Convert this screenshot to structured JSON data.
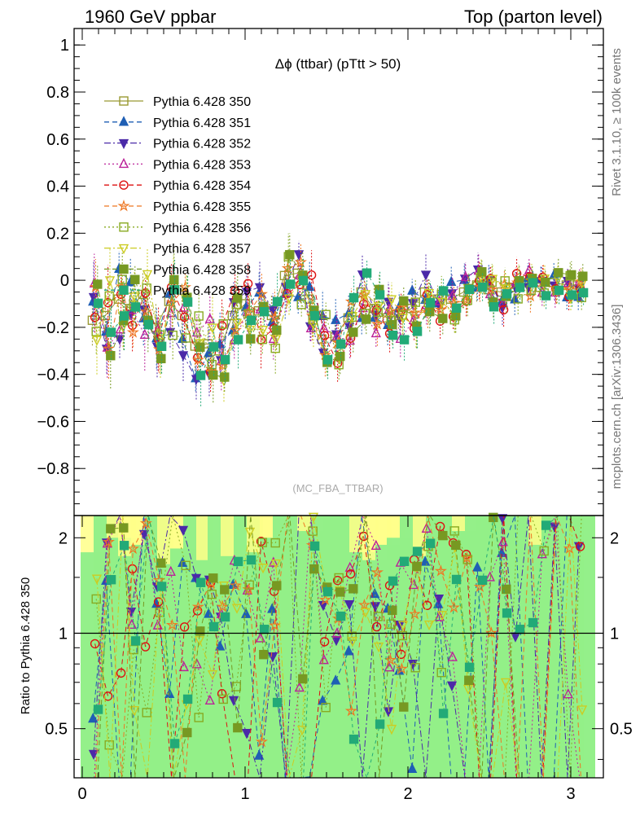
{
  "header": {
    "left": "1960 GeV ppbar",
    "right": "Top (parton level)"
  },
  "side_labels": {
    "upper": "Rivet 3.1.10, ≥ 100k events",
    "lower": "mcplots.cern.ch [arXiv:1306.3436]"
  },
  "chart_data": {
    "type": "line",
    "title": "Δϕ (ttbar) (pTtt > 50)",
    "watermark": "(MC_FBA_TTBAR)",
    "xlim": [
      -0.05,
      3.2
    ],
    "ylim": [
      -1.0,
      1.07
    ],
    "ratio_ylabel": "Ratio to Pythia 6.428 350",
    "ratio_ylim": [
      0.35,
      2.35
    ],
    "x_ticks": [
      "0",
      "1",
      "2",
      "3"
    ],
    "y_ticks": [
      "−0.8",
      "−0.6",
      "−0.4",
      "−0.2",
      "0",
      "0.2",
      "0.4",
      "0.6",
      "0.8",
      "1"
    ],
    "ratio_ticks": [
      "0.5",
      "1",
      "2"
    ],
    "legend_position": "top-left",
    "series": [
      {
        "name": "Pythia 6.428 350",
        "color": "#999933",
        "marker": "square-open",
        "dash": "none"
      },
      {
        "name": "Pythia 6.428 351",
        "color": "#1f5fb4",
        "marker": "triangle-up-filled",
        "dash": "6,4"
      },
      {
        "name": "Pythia 6.428 352",
        "color": "#4b2aa8",
        "marker": "triangle-down-filled",
        "dash": "8,3,2,3"
      },
      {
        "name": "Pythia 6.428 353",
        "color": "#bb2299",
        "marker": "triangle-up-open",
        "dash": "2,3"
      },
      {
        "name": "Pythia 6.428 354",
        "color": "#dd1111",
        "marker": "circle-open",
        "dash": "6,4"
      },
      {
        "name": "Pythia 6.428 355",
        "color": "#ee7722",
        "marker": "star-open",
        "dash": "6,4"
      },
      {
        "name": "Pythia 6.428 356",
        "color": "#88aa22",
        "marker": "square-open",
        "dash": "2,3"
      },
      {
        "name": "Pythia 6.428 357",
        "color": "#cccc22",
        "marker": "triangle-down-open",
        "dash": "8,3,2,3"
      },
      {
        "name": "Pythia 6.428 358",
        "color": "#779922",
        "marker": "square-filled",
        "dash": "6,4"
      },
      {
        "name": "Pythia 6.428 359",
        "color": "#22aa77",
        "marker": "square-filled",
        "dash": "4,4"
      }
    ],
    "ref_series": {
      "name": "Pythia 6.428 350",
      "x": [
        0.08,
        0.16,
        0.24,
        0.31,
        0.39,
        0.47,
        0.55,
        0.63,
        0.71,
        0.79,
        0.86,
        0.94,
        1.02,
        1.1,
        1.18,
        1.26,
        1.34,
        1.41,
        1.49,
        1.57,
        1.65,
        1.73,
        1.81,
        1.89,
        1.96,
        2.04,
        2.12,
        2.2,
        2.28,
        2.36,
        2.44,
        2.51,
        2.59,
        2.67,
        2.75,
        2.83,
        2.91,
        2.99,
        3.06
      ],
      "y": [
        -0.17,
        -0.15,
        -0.08,
        -0.12,
        -0.06,
        -0.2,
        -0.09,
        -0.15,
        -0.28,
        -0.27,
        -0.3,
        -0.15,
        -0.1,
        -0.13,
        -0.15,
        0.02,
        0.03,
        -0.08,
        -0.25,
        -0.24,
        -0.16,
        -0.05,
        -0.12,
        -0.16,
        -0.15,
        -0.12,
        -0.05,
        -0.08,
        -0.08,
        -0.05,
        -0.02,
        -0.04,
        -0.05,
        -0.03,
        -0.01,
        -0.03,
        -0.01,
        -0.02,
        -0.02
      ]
    },
    "ratio_band": {
      "x": [
        0.08,
        0.16,
        0.24,
        0.31,
        0.39,
        0.47,
        0.55,
        0.63,
        0.71,
        0.79,
        0.86,
        0.94,
        1.02,
        1.1,
        1.18,
        1.26,
        1.34,
        1.41,
        1.49,
        1.57,
        1.65,
        1.73,
        1.81,
        1.89,
        1.96,
        2.04,
        2.12,
        2.2,
        2.28,
        2.36,
        2.44,
        2.51,
        2.59,
        2.67,
        2.75,
        2.83,
        2.91,
        2.99,
        3.06
      ],
      "inner_low": [
        0.35,
        0.35,
        0.35,
        0.35,
        0.35,
        0.35,
        0.35,
        0.35,
        0.35,
        0.35,
        0.35,
        0.35,
        0.35,
        0.35,
        0.35,
        0.35,
        0.35,
        0.35,
        0.35,
        0.35,
        0.35,
        0.35,
        0.35,
        0.35,
        0.35,
        0.35,
        0.35,
        0.35,
        0.35,
        0.35,
        0.35,
        0.35,
        0.35,
        0.35,
        0.35,
        0.35,
        0.35,
        0.35,
        0.35
      ],
      "inner_high": [
        1.8,
        2.35,
        2.0,
        1.75,
        1.9,
        2.35,
        1.65,
        1.85,
        2.35,
        1.7,
        2.35,
        1.75,
        2.35,
        1.8,
        2.0,
        2.35,
        2.35,
        2.1,
        2.35,
        2.35,
        2.35,
        1.8,
        1.7,
        1.9,
        2.0,
        2.35,
        1.75,
        2.35,
        2.35,
        2.1,
        2.35,
        2.35,
        2.35,
        2.35,
        2.35,
        1.9,
        2.35,
        2.35,
        2.35
      ],
      "outer_high": [
        2.35,
        2.35,
        2.35,
        2.35,
        2.35,
        2.35,
        2.35,
        2.35,
        2.35,
        2.35,
        2.35,
        2.35,
        2.35,
        2.35,
        2.35,
        2.35,
        2.35,
        2.35,
        2.35,
        2.35,
        2.35,
        2.35,
        2.35,
        2.35,
        2.35,
        2.35,
        2.35,
        2.35,
        2.35,
        2.35,
        2.35,
        2.35,
        2.35,
        2.35,
        2.35,
        2.35,
        2.35,
        2.35,
        2.35
      ]
    }
  }
}
